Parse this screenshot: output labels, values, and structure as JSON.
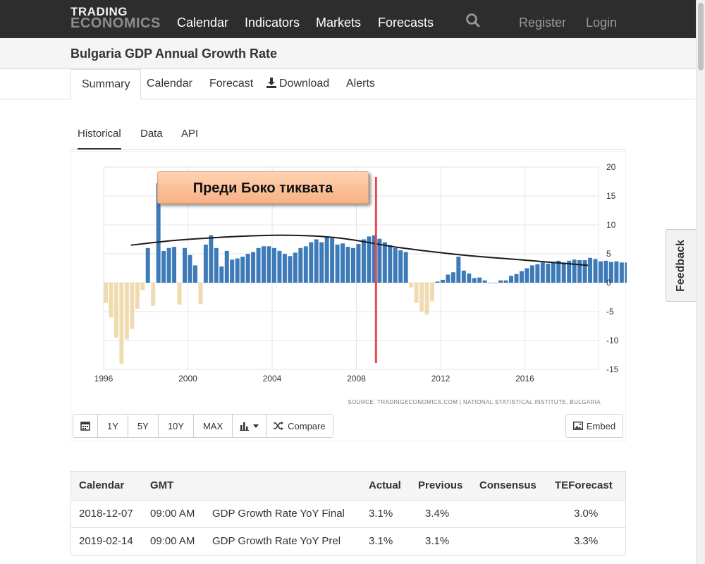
{
  "header": {
    "logo_line1": "TRADING",
    "logo_line2": "ECONOMICS",
    "nav": [
      "Calendar",
      "Indicators",
      "Markets",
      "Forecasts"
    ],
    "search_icon": "search-icon",
    "register": "Register",
    "login": "Login"
  },
  "page": {
    "title": "Bulgaria GDP Annual Growth Rate"
  },
  "tabs": [
    "Summary",
    "Calendar",
    "Forecast",
    "Download",
    "Alerts"
  ],
  "subtabs": [
    "Historical",
    "Data",
    "API"
  ],
  "annotation": "Преди Боко тиквата",
  "source": "SOURCE: TRADINGECONOMICS.COM  |  NATIONAL STATISTICAL INSTITUTE, BULGARIA",
  "toolbar": {
    "buttons": [
      "1Y",
      "5Y",
      "10Y",
      "MAX"
    ],
    "compare": "Compare",
    "embed": "Embed"
  },
  "calendar_table": {
    "headers": [
      "Calendar",
      "GMT",
      "",
      "Actual",
      "Previous",
      "Consensus",
      "TEForecast"
    ],
    "rows": [
      [
        "2018-12-07",
        "09:00 AM",
        "GDP Growth Rate YoY Final",
        "3.1%",
        "3.4%",
        "",
        "3.0%"
      ],
      [
        "2019-02-14",
        "09:00 AM",
        "GDP Growth Rate YoY Prel",
        "3.1%",
        "3.1%",
        "",
        "3.3%"
      ]
    ]
  },
  "feedback": "Feedback",
  "colors": {
    "positive_bar": "#3d7ab8",
    "negative_bar": "#f0dbb0",
    "marker_line": "#e8474f",
    "trend_line": "#1a1a1a"
  },
  "chart_data": {
    "type": "bar",
    "x_label_ticks": [
      "1996",
      "2000",
      "2004",
      "2008",
      "2012",
      "2016"
    ],
    "y_ticks": [
      20,
      15,
      10,
      5,
      0,
      -5,
      -10,
      -15
    ],
    "ylim": [
      -15,
      20
    ],
    "xlim": [
      1996,
      2019.5
    ],
    "marker_year": 2009,
    "quarters_start": 1996,
    "values": [
      -3.5,
      -6,
      -9.5,
      -14,
      -9.8,
      -8,
      -4.5,
      -1.3,
      6,
      -4,
      17.2,
      5.5,
      6,
      6.2,
      -3.8,
      6,
      4.8,
      3,
      -3.7,
      6.6,
      8.2,
      6,
      2.8,
      5.5,
      4,
      4.2,
      4.5,
      5,
      5.3,
      6,
      6.3,
      6.3,
      6,
      5.5,
      5,
      4.6,
      5.2,
      6,
      6.3,
      7,
      7.5,
      7,
      8,
      7.7,
      6.6,
      6.8,
      6.2,
      6,
      6.7,
      7.5,
      8,
      8.2,
      7.6,
      7,
      6.5,
      6,
      5.6,
      5.3,
      -0.8,
      -3.5,
      -5,
      -5.5,
      -3.2,
      0.2,
      0.5,
      1.4,
      1.8,
      4.5,
      2.1,
      1.6,
      0.8,
      0.9,
      0.4,
      0,
      0,
      0.4,
      0.4,
      1.2,
      1.5,
      2,
      2.5,
      3,
      3.2,
      3.5,
      3.3,
      3.6,
      3.8,
      3.5,
      3.8,
      4,
      3.9,
      3.9,
      4.3,
      4.1,
      3.7,
      3.8,
      3.6,
      3.7,
      3.5,
      3.5,
      3.4,
      3.1,
      3.5
    ],
    "trend": [
      [
        1997.3,
        6.5
      ],
      [
        2000,
        7.5
      ],
      [
        2004,
        8.2
      ],
      [
        2007,
        7.8
      ],
      [
        2010,
        6.1
      ],
      [
        2013,
        4.8
      ],
      [
        2016,
        3.9
      ],
      [
        2019,
        3.0
      ]
    ]
  }
}
